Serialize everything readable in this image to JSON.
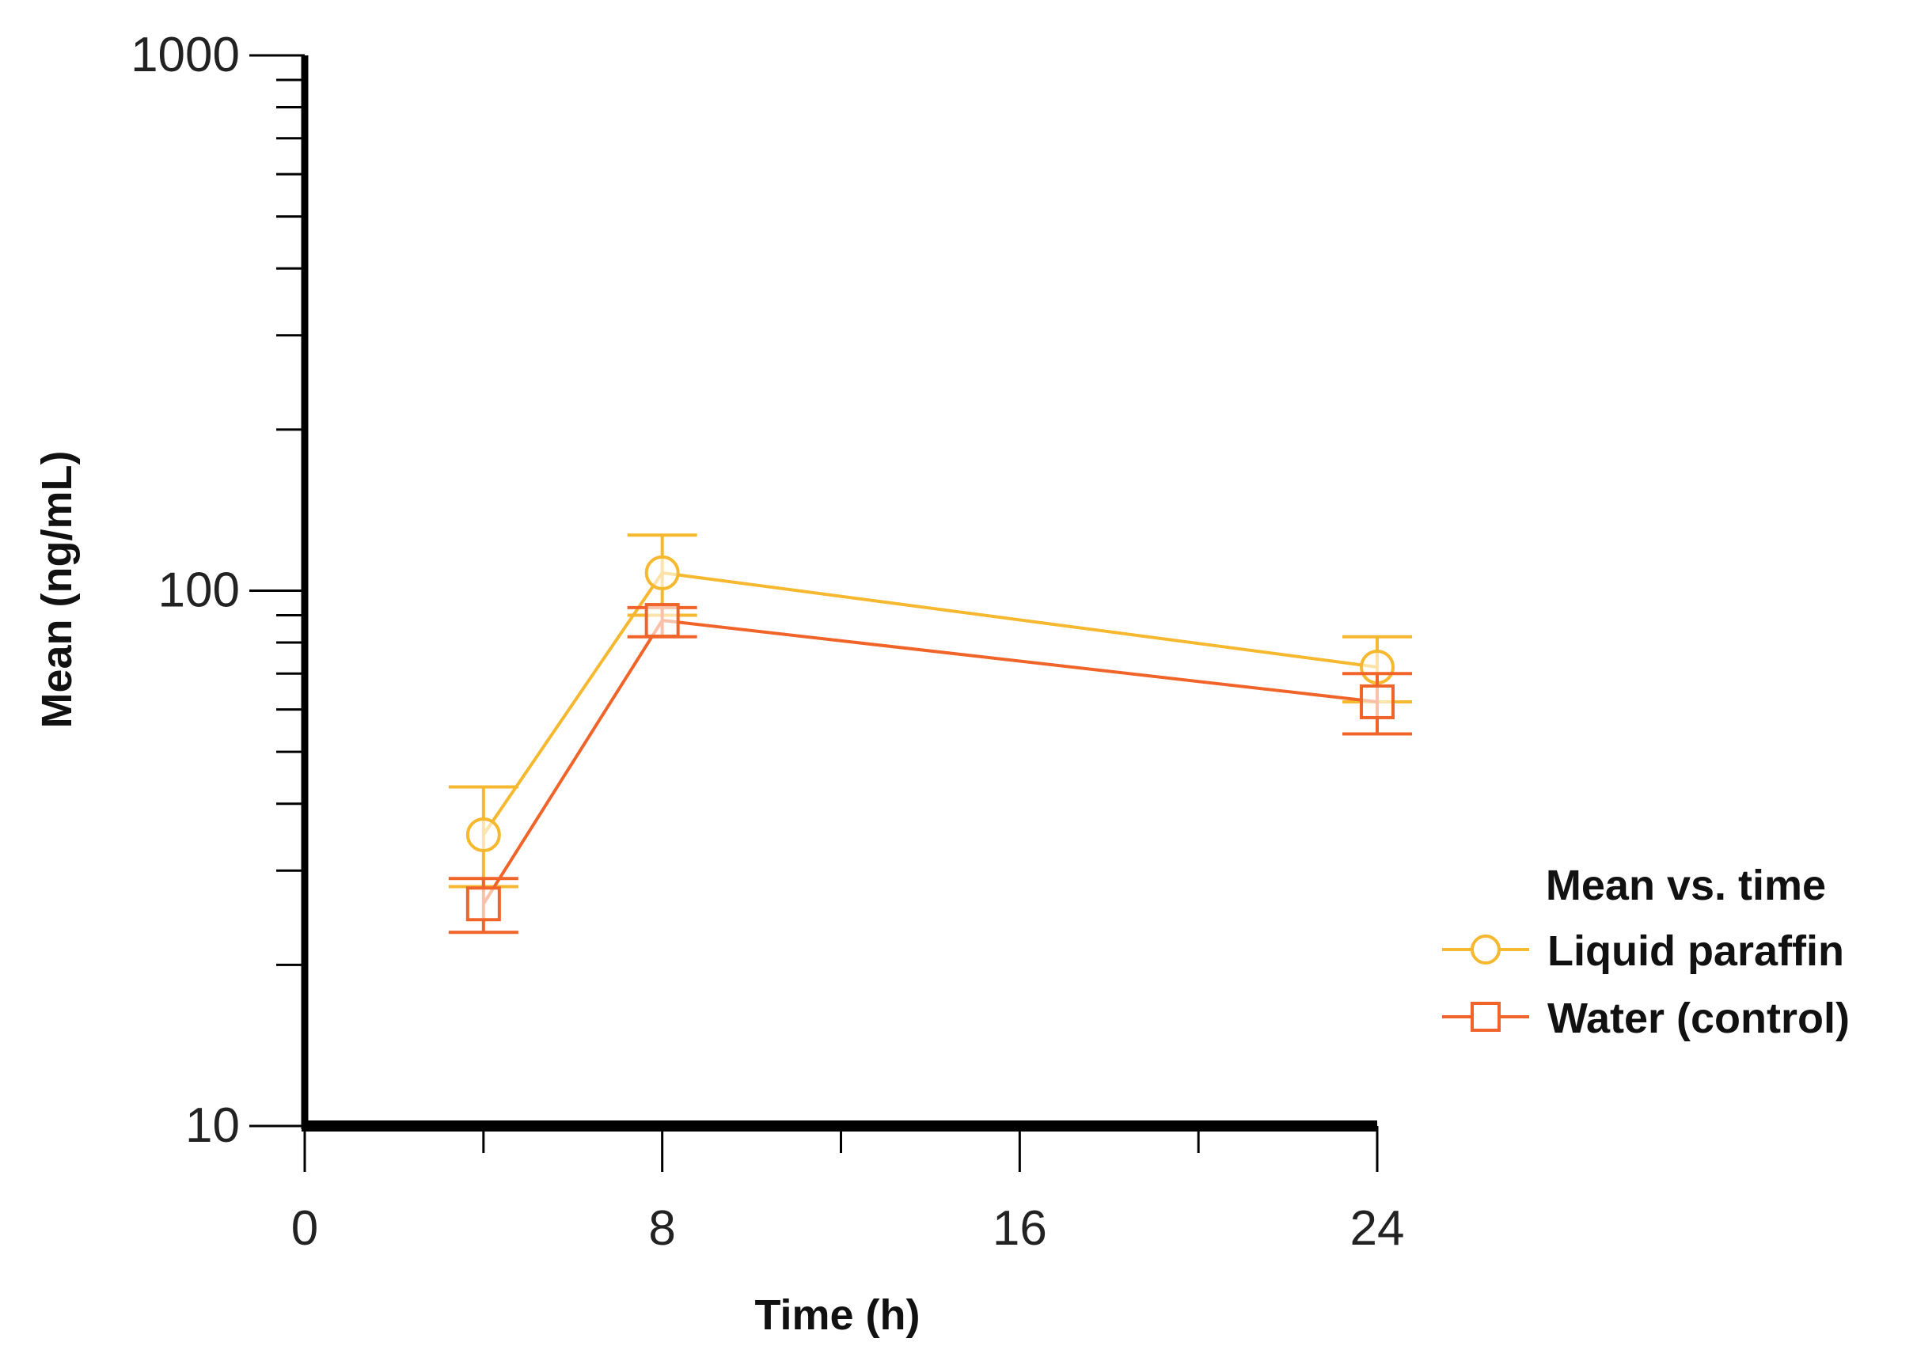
{
  "chart_data": {
    "type": "line",
    "title": "",
    "xlabel": "Time (h)",
    "ylabel": "Mean (ng/mL)",
    "xlim": [
      0,
      24
    ],
    "ylim": [
      10,
      1000
    ],
    "y_scale": "log",
    "x_ticks": [
      0,
      8,
      16,
      24
    ],
    "x_tick_labels": [
      "0",
      "8",
      "16",
      "24"
    ],
    "y_ticks": [
      10,
      100,
      1000
    ],
    "y_tick_labels": [
      "10",
      "100",
      "1000"
    ],
    "grid": false,
    "legend": {
      "title": "Mean vs. time",
      "position": "right",
      "entries": [
        "Liquid paraffin",
        "Water (control)"
      ]
    },
    "series": [
      {
        "name": "Liquid paraffin",
        "color": "#f5b82e",
        "marker": "circle",
        "x": [
          4,
          8,
          24
        ],
        "y": [
          35,
          108,
          72
        ],
        "error_upper": [
          43,
          127,
          82
        ],
        "error_lower": [
          28,
          90,
          62
        ]
      },
      {
        "name": "Water (control)",
        "color": "#f0642a",
        "marker": "square",
        "x": [
          4,
          8,
          24
        ],
        "y": [
          26,
          88,
          62
        ],
        "error_upper": [
          29,
          93,
          70
        ],
        "error_lower": [
          23,
          82,
          54
        ]
      }
    ]
  }
}
